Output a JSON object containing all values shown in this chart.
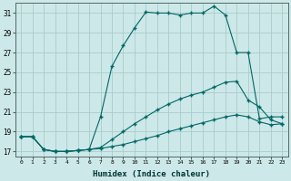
{
  "xlabel": "Humidex (Indice chaleur)",
  "background_color": "#cde8e8",
  "grid_color": "#aacccc",
  "line_color": "#006666",
  "xlim": [
    -0.5,
    23.5
  ],
  "ylim": [
    16.5,
    32.0
  ],
  "yticks": [
    17,
    19,
    21,
    23,
    25,
    27,
    29,
    31
  ],
  "xticks": [
    0,
    1,
    2,
    3,
    4,
    5,
    6,
    7,
    8,
    9,
    10,
    11,
    12,
    13,
    14,
    15,
    16,
    17,
    18,
    19,
    20,
    21,
    22,
    23
  ],
  "line1_x": [
    0,
    1,
    2,
    3,
    4,
    5,
    6,
    7,
    8,
    9,
    10,
    11,
    12,
    13,
    14,
    15,
    16,
    17,
    18,
    19,
    20,
    21,
    22,
    23
  ],
  "line1_y": [
    18.5,
    18.5,
    17.2,
    17.0,
    17.0,
    17.1,
    17.2,
    20.5,
    25.6,
    27.7,
    29.5,
    31.1,
    31.0,
    31.0,
    30.8,
    31.0,
    31.0,
    31.7,
    30.8,
    27.0,
    27.0,
    20.3,
    20.5,
    20.5
  ],
  "line2_x": [
    0,
    1,
    2,
    3,
    4,
    5,
    6,
    7,
    8,
    9,
    10,
    11,
    12,
    13,
    14,
    15,
    16,
    17,
    18,
    19,
    20,
    21,
    22,
    23
  ],
  "line2_y": [
    18.5,
    18.5,
    17.2,
    17.0,
    17.0,
    17.1,
    17.2,
    17.4,
    18.2,
    19.0,
    19.8,
    20.5,
    21.2,
    21.8,
    22.3,
    22.7,
    23.0,
    23.5,
    24.0,
    24.1,
    22.2,
    21.5,
    20.2,
    19.8
  ],
  "line3_x": [
    0,
    1,
    2,
    3,
    4,
    5,
    6,
    7,
    8,
    9,
    10,
    11,
    12,
    13,
    14,
    15,
    16,
    17,
    18,
    19,
    20,
    21,
    22,
    23
  ],
  "line3_y": [
    18.5,
    18.5,
    17.2,
    17.0,
    17.0,
    17.1,
    17.2,
    17.3,
    17.5,
    17.7,
    18.0,
    18.3,
    18.6,
    19.0,
    19.3,
    19.6,
    19.9,
    20.2,
    20.5,
    20.7,
    20.5,
    20.0,
    19.7,
    19.8
  ]
}
